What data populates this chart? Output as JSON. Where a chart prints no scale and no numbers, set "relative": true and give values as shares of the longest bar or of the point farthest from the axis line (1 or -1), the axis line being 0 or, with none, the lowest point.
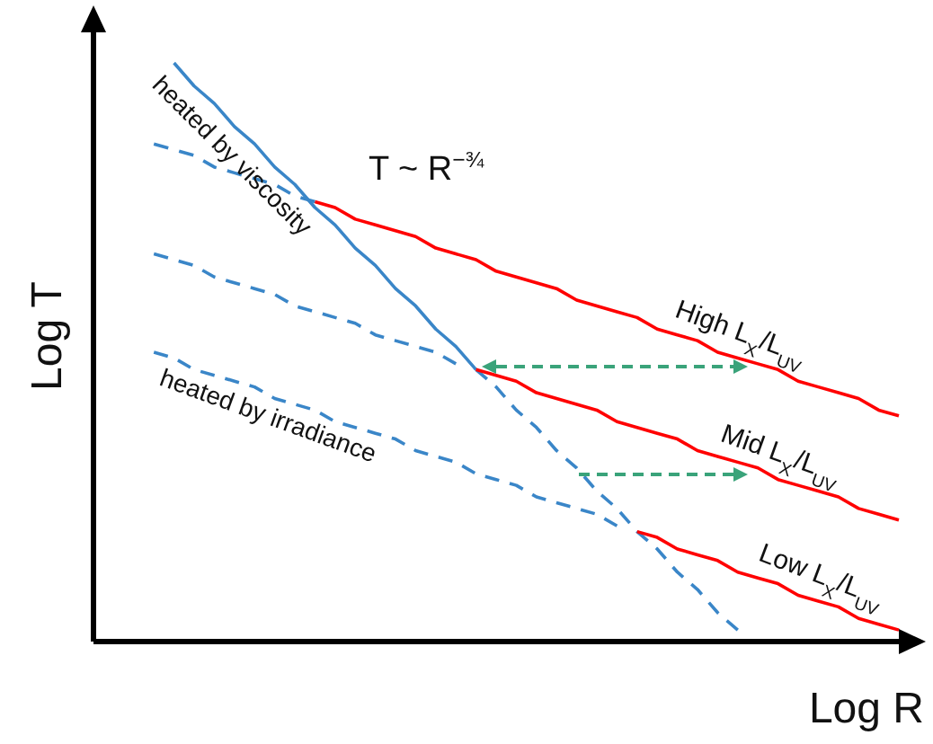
{
  "chart_data": {
    "type": "line",
    "relative": true,
    "xlabel": "Log R",
    "ylabel": "Log T",
    "legend": false,
    "marker": "none",
    "grid": false,
    "categories": [
      null,
      null,
      null,
      null,
      null,
      null,
      null,
      null,
      null,
      null,
      null,
      null,
      null,
      null,
      null,
      null,
      null,
      null,
      null,
      null,
      null,
      null,
      null,
      null,
      null,
      null,
      null,
      null,
      null,
      null,
      null,
      null,
      null,
      null,
      null,
      null,
      null,
      null,
      null,
      null,
      null
    ],
    "annotations": [
      "T ~ R$^{−¾}$",
      "heated by viscosity",
      "heated by irradiance"
    ],
    "series": [
      {
        "color": "#3a86c8",
        "line_style": "solid",
        "values": [
          null,
          null,
          null,
          null,
          1.0,
          0.96,
          0.93,
          0.89,
          0.86,
          0.82,
          0.79,
          0.75,
          0.72,
          0.68,
          0.65,
          0.61,
          0.58,
          0.54,
          0.51,
          0.47,
          null,
          null,
          null,
          null,
          null,
          null,
          null,
          null,
          null,
          null,
          null,
          null,
          null,
          null,
          null,
          null,
          null,
          null,
          null,
          null,
          null
        ]
      },
      {
        "color": "#3a86c8",
        "line_style": "dashed",
        "values": [
          null,
          null,
          null,
          null,
          null,
          null,
          null,
          null,
          null,
          null,
          null,
          null,
          null,
          null,
          null,
          null,
          null,
          null,
          null,
          0.47,
          0.44,
          0.4,
          0.37,
          0.33,
          0.3,
          0.26,
          0.23,
          0.19,
          0.16,
          0.12,
          0.09,
          0.05,
          0.02,
          null,
          null,
          null,
          null,
          null,
          null,
          null,
          null
        ]
      },
      {
        "color": "#3a86c8",
        "line_style": "dashed",
        "values": [
          null,
          null,
          null,
          0.86,
          0.85,
          0.84,
          0.82,
          0.81,
          0.8,
          0.79,
          0.77,
          0.76,
          null,
          null,
          null,
          null,
          null,
          null,
          null,
          null,
          null,
          null,
          null,
          null,
          null,
          null,
          null,
          null,
          null,
          null,
          null,
          null,
          null,
          null,
          null,
          null,
          null,
          null,
          null,
          null,
          null
        ]
      },
      {
        "name": "High L$_{X}$/L$_{UV}$",
        "color": "#ff0000",
        "line_style": "solid",
        "values": [
          null,
          null,
          null,
          null,
          null,
          null,
          null,
          null,
          null,
          null,
          null,
          0.76,
          0.75,
          0.73,
          0.72,
          0.71,
          0.7,
          0.68,
          0.67,
          0.66,
          0.64,
          0.63,
          0.62,
          0.61,
          0.59,
          0.58,
          0.57,
          0.56,
          0.54,
          0.53,
          0.52,
          0.5,
          0.49,
          0.48,
          0.47,
          0.45,
          0.44,
          0.43,
          0.42,
          0.4,
          0.39
        ]
      },
      {
        "color": "#3a86c8",
        "line_style": "dashed",
        "values": [
          null,
          null,
          null,
          0.67,
          0.66,
          0.65,
          0.63,
          0.62,
          0.61,
          0.6,
          0.58,
          0.57,
          0.56,
          0.55,
          0.53,
          0.52,
          0.51,
          0.5,
          0.48,
          null,
          null,
          null,
          null,
          null,
          null,
          null,
          null,
          null,
          null,
          null,
          null,
          null,
          null,
          null,
          null,
          null,
          null,
          null,
          null,
          null,
          null
        ]
      },
      {
        "name": "Mid L$_{X}$/L$_{UV}$",
        "color": "#ff0000",
        "line_style": "solid",
        "values": [
          null,
          null,
          null,
          null,
          null,
          null,
          null,
          null,
          null,
          null,
          null,
          null,
          null,
          null,
          null,
          null,
          null,
          null,
          null,
          0.47,
          0.46,
          0.45,
          0.43,
          0.42,
          0.41,
          0.4,
          0.38,
          0.37,
          0.36,
          0.35,
          0.33,
          0.32,
          0.31,
          0.3,
          0.28,
          0.27,
          0.26,
          0.25,
          0.23,
          0.22,
          0.21
        ]
      },
      {
        "color": "#3a86c8",
        "line_style": "dashed",
        "values": [
          null,
          null,
          null,
          0.5,
          0.49,
          0.47,
          0.46,
          0.45,
          0.44,
          0.42,
          0.41,
          0.4,
          0.38,
          0.37,
          0.36,
          0.35,
          0.33,
          0.32,
          0.31,
          0.29,
          0.28,
          0.27,
          0.25,
          0.24,
          0.23,
          0.22,
          0.2,
          null,
          null,
          null,
          null,
          null,
          null,
          null,
          null,
          null,
          null,
          null,
          null,
          null,
          null
        ]
      },
      {
        "name": "Low L$_{X}$/L$_{UV}$",
        "color": "#ff0000",
        "line_style": "solid",
        "values": [
          null,
          null,
          null,
          null,
          null,
          null,
          null,
          null,
          null,
          null,
          null,
          null,
          null,
          null,
          null,
          null,
          null,
          null,
          null,
          null,
          null,
          null,
          null,
          null,
          null,
          null,
          null,
          0.19,
          0.18,
          0.16,
          0.15,
          0.14,
          0.12,
          0.11,
          0.1,
          0.08,
          0.07,
          0.06,
          0.04,
          0.03,
          0.02
        ]
      }
    ]
  }
}
